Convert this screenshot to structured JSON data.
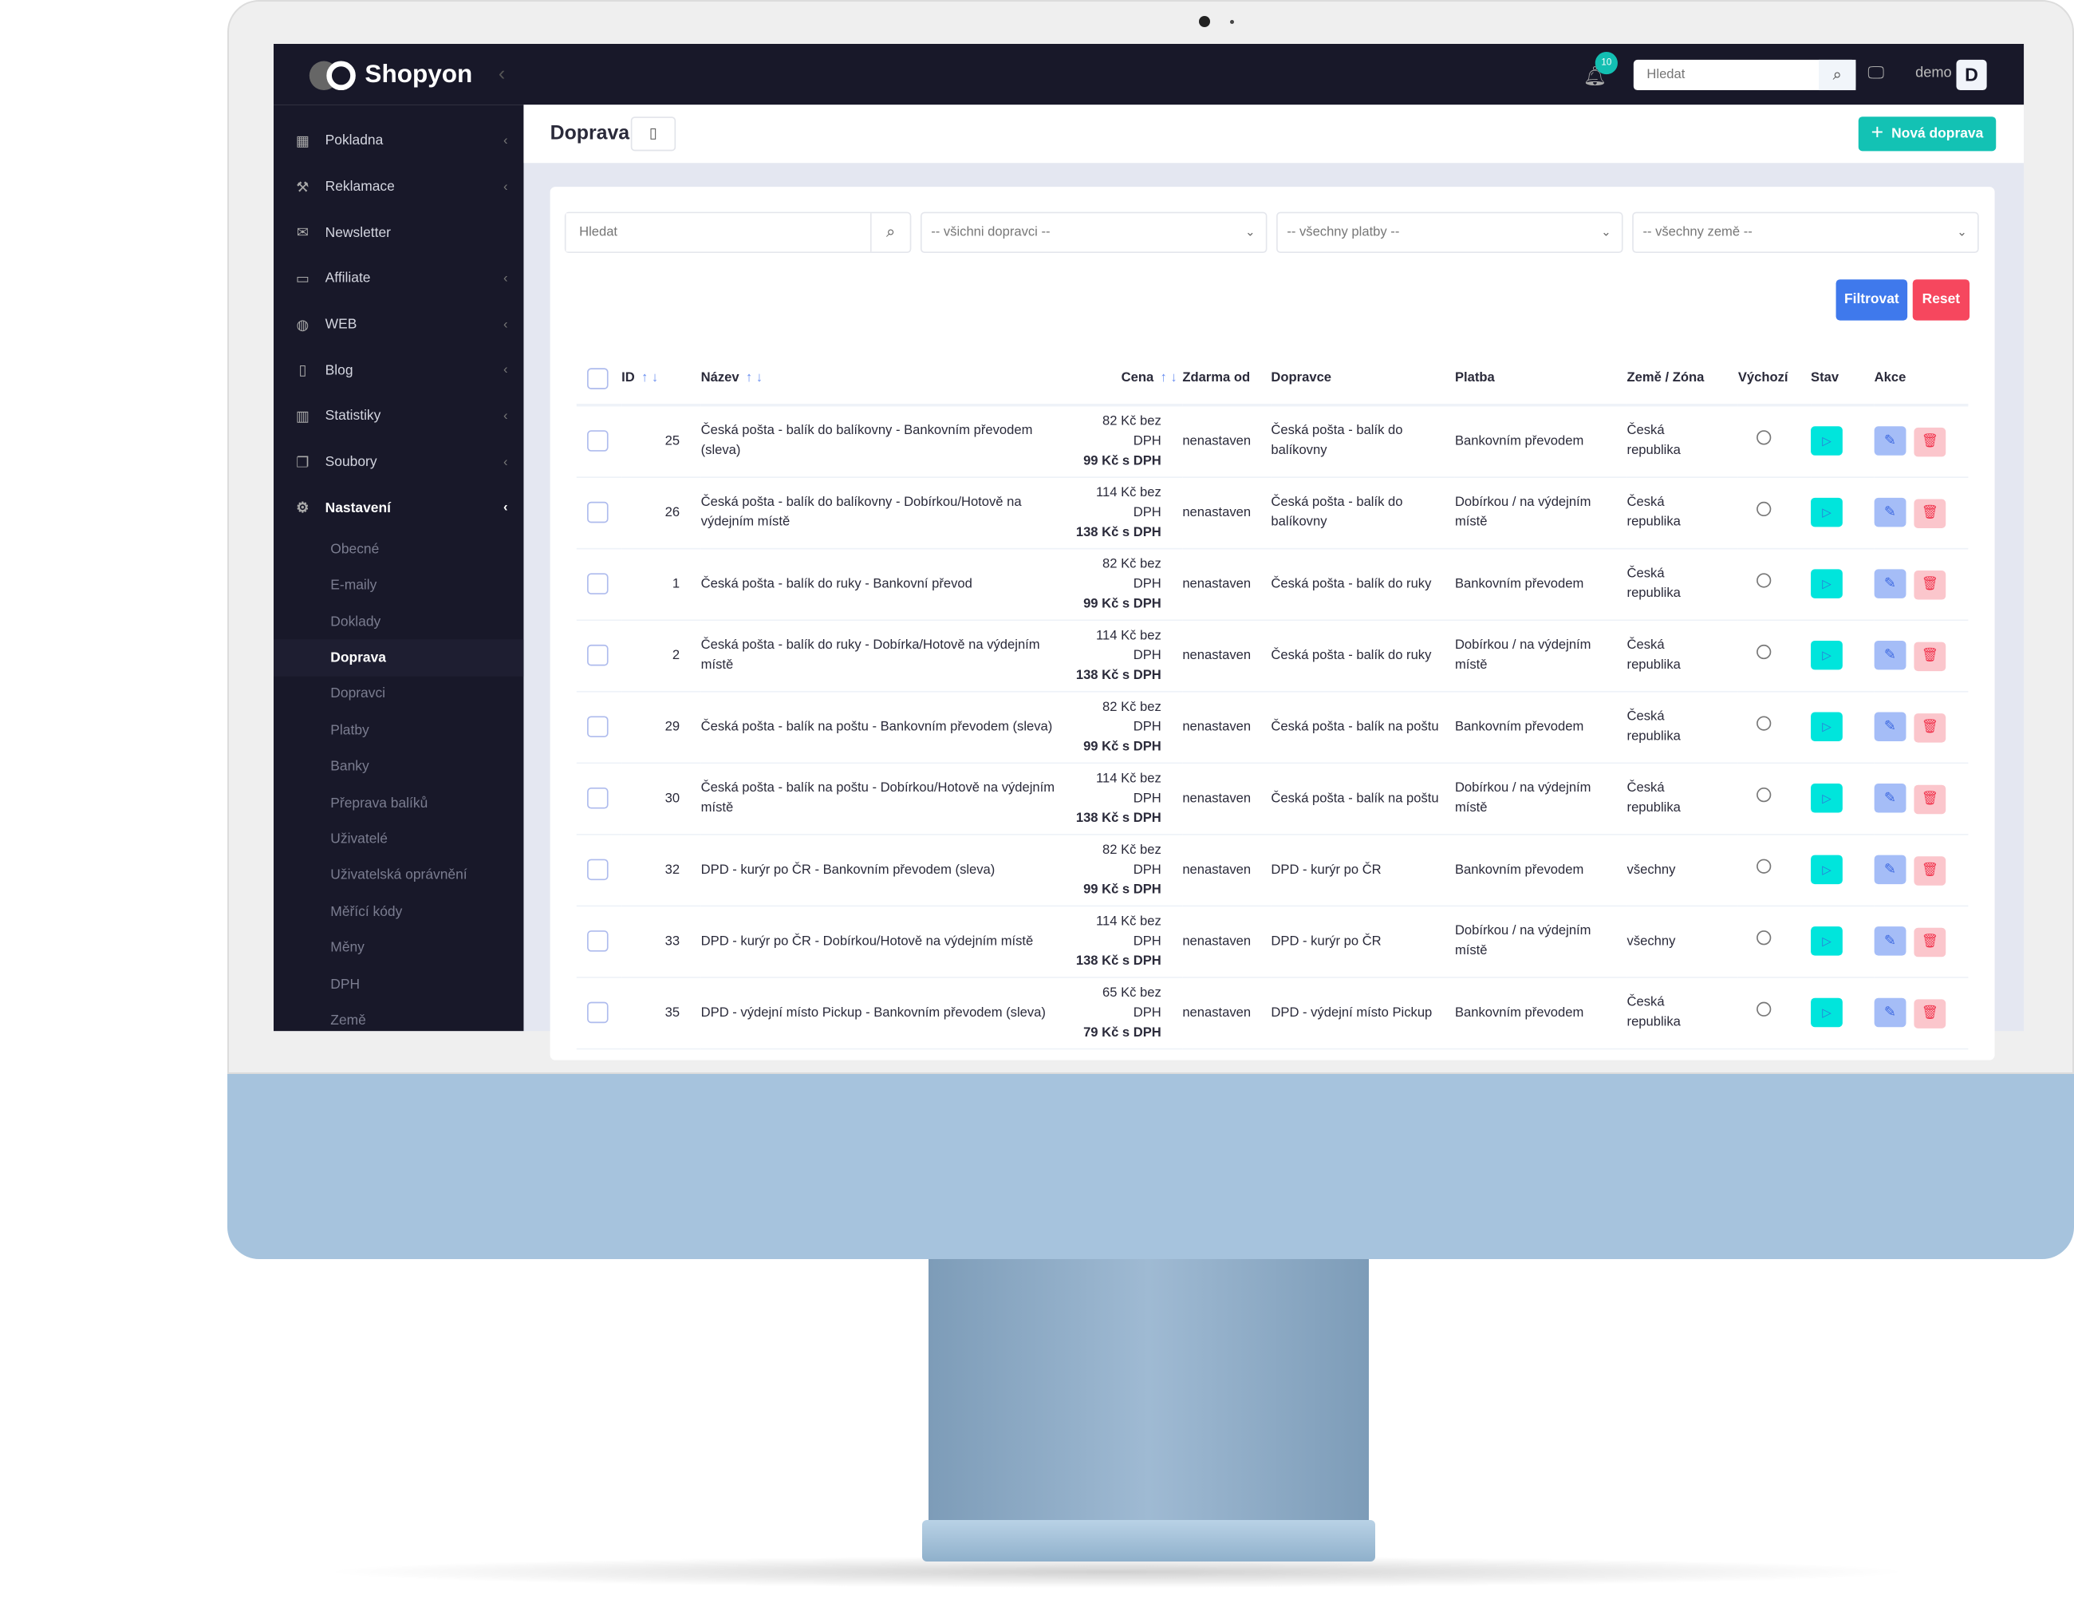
{
  "app": {
    "name": "Shopyon"
  },
  "topbar": {
    "notifications_count": "10",
    "search_placeholder": "Hledat",
    "user": "demo",
    "avatar_letter": "D"
  },
  "sidebar": {
    "items": [
      {
        "label": "Pokladna",
        "icon": "calculator-icon",
        "chevron": true
      },
      {
        "label": "Reklamace",
        "icon": "wrench-icon",
        "chevron": true
      },
      {
        "label": "Newsletter",
        "icon": "envelope-icon",
        "chevron": false
      },
      {
        "label": "Affiliate",
        "icon": "money-icon",
        "chevron": true
      },
      {
        "label": "WEB",
        "icon": "globe-icon",
        "chevron": true
      },
      {
        "label": "Blog",
        "icon": "bookmark-icon",
        "chevron": true
      },
      {
        "label": "Statistiky",
        "icon": "chart-icon",
        "chevron": true
      },
      {
        "label": "Soubory",
        "icon": "files-icon",
        "chevron": true
      },
      {
        "label": "Nastavení",
        "icon": "gear-icon",
        "chevron": true,
        "active": true
      }
    ],
    "subitems": [
      {
        "label": "Obecné"
      },
      {
        "label": "E-maily"
      },
      {
        "label": "Doklady"
      },
      {
        "label": "Doprava",
        "active": true
      },
      {
        "label": "Dopravci"
      },
      {
        "label": "Platby"
      },
      {
        "label": "Banky"
      },
      {
        "label": "Přeprava balíků"
      },
      {
        "label": "Uživatelé"
      },
      {
        "label": "Uživatelská oprávnění"
      },
      {
        "label": "Měřící kódy"
      },
      {
        "label": "Měny"
      },
      {
        "label": "DPH"
      },
      {
        "label": "Země"
      }
    ]
  },
  "page": {
    "title": "Doprava",
    "new_button": "Nová doprava"
  },
  "filters": {
    "search_placeholder": "Hledat",
    "carrier": "-- všichni dopravci --",
    "payment": "-- všechny platby --",
    "country": "-- všechny země --",
    "filter_button": "Filtrovat",
    "reset_button": "Reset"
  },
  "table": {
    "headers": {
      "id": "ID",
      "name": "Název",
      "price": "Cena",
      "free_from": "Zdarma od",
      "carrier": "Dopravce",
      "payment": "Platba",
      "zone": "Země / Zóna",
      "default": "Výchozí",
      "state": "Stav",
      "actions": "Akce"
    },
    "rows": [
      {
        "id": "25",
        "name": "Česká pošta - balík do balíkovny - Bankovním převodem (sleva)",
        "price_net": "82 Kč bez DPH",
        "price_gross": "99 Kč s DPH",
        "free_from": "nenastaven",
        "carrier": "Česká pošta - balík do balíkovny",
        "payment": "Bankovním převodem",
        "zone": "Česká republika"
      },
      {
        "id": "26",
        "name": "Česká pošta - balík do balíkovny - Dobírkou/Hotově na výdejním místě",
        "price_net": "114 Kč bez DPH",
        "price_gross": "138 Kč s DPH",
        "free_from": "nenastaven",
        "carrier": "Česká pošta - balík do balíkovny",
        "payment": "Dobírkou / na výdejním místě",
        "zone": "Česká republika"
      },
      {
        "id": "1",
        "name": "Česká pošta - balík do ruky - Bankovní převod",
        "price_net": "82 Kč bez DPH",
        "price_gross": "99 Kč s DPH",
        "free_from": "nenastaven",
        "carrier": "Česká pošta - balík do ruky",
        "payment": "Bankovním převodem",
        "zone": "Česká republika"
      },
      {
        "id": "2",
        "name": "Česká pošta - balík do ruky - Dobírka/Hotově na výdejním místě",
        "price_net": "114 Kč bez DPH",
        "price_gross": "138 Kč s DPH",
        "free_from": "nenastaven",
        "carrier": "Česká pošta - balík do ruky",
        "payment": "Dobírkou / na výdejním místě",
        "zone": "Česká republika"
      },
      {
        "id": "29",
        "name": "Česká pošta - balík na poštu - Bankovním převodem (sleva)",
        "price_net": "82 Kč bez DPH",
        "price_gross": "99 Kč s DPH",
        "free_from": "nenastaven",
        "carrier": "Česká pošta - balík na poštu",
        "payment": "Bankovním převodem",
        "zone": "Česká republika"
      },
      {
        "id": "30",
        "name": "Česká pošta - balík na poštu - Dobírkou/Hotově na výdejním místě",
        "price_net": "114 Kč bez DPH",
        "price_gross": "138 Kč s DPH",
        "free_from": "nenastaven",
        "carrier": "Česká pošta - balík na poštu",
        "payment": "Dobírkou / na výdejním místě",
        "zone": "Česká republika"
      },
      {
        "id": "32",
        "name": "DPD - kurýr po ČR - Bankovním převodem (sleva)",
        "price_net": "82 Kč bez DPH",
        "price_gross": "99 Kč s DPH",
        "free_from": "nenastaven",
        "carrier": "DPD - kurýr po ČR",
        "payment": "Bankovním převodem",
        "zone": "všechny"
      },
      {
        "id": "33",
        "name": "DPD - kurýr po ČR - Dobírkou/Hotově na výdejním místě",
        "price_net": "114 Kč bez DPH",
        "price_gross": "138 Kč s DPH",
        "free_from": "nenastaven",
        "carrier": "DPD - kurýr po ČR",
        "payment": "Dobírkou / na výdejním místě",
        "zone": "všechny"
      },
      {
        "id": "35",
        "name": "DPD - výdejní místo Pickup - Bankovním převodem (sleva)",
        "price_net": "65 Kč bez DPH",
        "price_gross": "79 Kč s DPH",
        "free_from": "nenastaven",
        "carrier": "DPD - výdejní místo Pickup",
        "payment": "Bankovním převodem",
        "zone": "Česká republika"
      }
    ]
  },
  "colors": {
    "sidebar": "#181829",
    "accent": "#13c2b4",
    "filter": "#3f79ec",
    "reset": "#f6475e",
    "play": "#00e5dc"
  }
}
